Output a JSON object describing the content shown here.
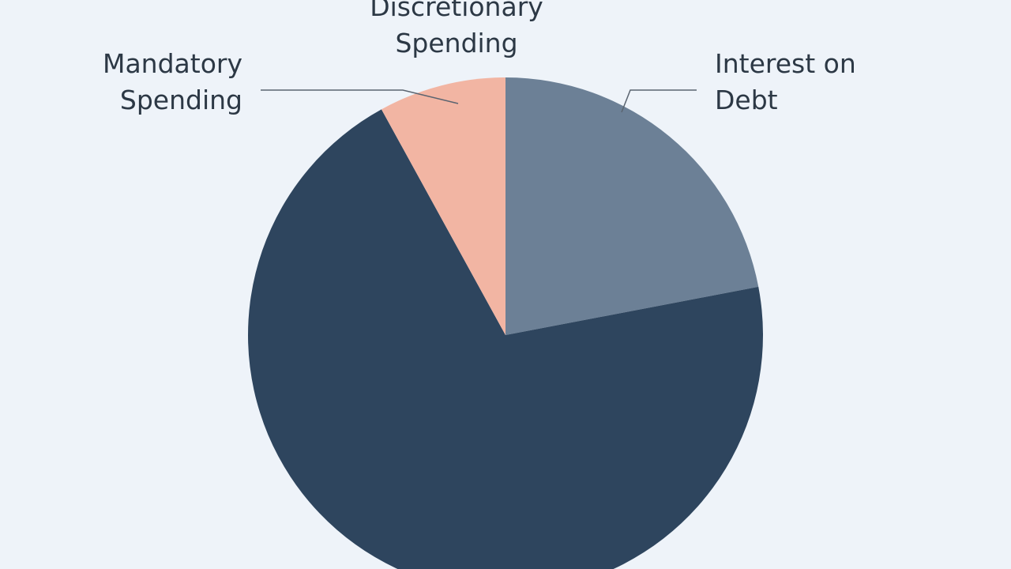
{
  "chart_data": {
    "type": "pie",
    "categories": [
      "Interest on Debt",
      "Mandatory Spending",
      "Discretionary Spending"
    ],
    "values": [
      22,
      70,
      8
    ],
    "colors": [
      "#6c8096",
      "#2e455e",
      "#f2b5a3"
    ]
  }
}
